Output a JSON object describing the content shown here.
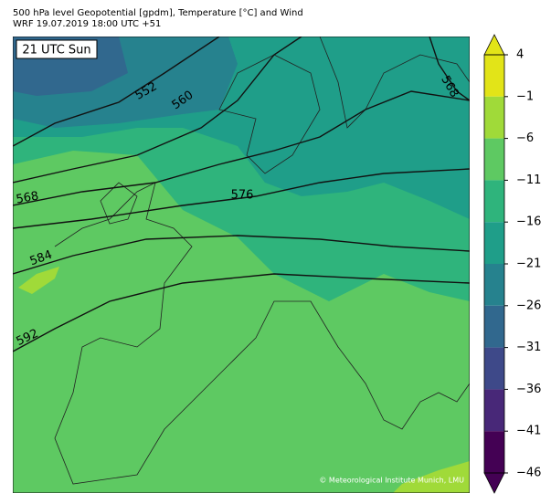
{
  "header": {
    "title": "500 hPa level Geopotential [gpdm], Temperature [°C] and Wind",
    "subtitle": "WRF 19.07.2019 18:00 UTC +51"
  },
  "map": {
    "time_label": "21 UTC Sun",
    "contour_labels": [
      552,
      560,
      568,
      576,
      584,
      592,
      568
    ],
    "copyright": "© Meteorological Institute Munich, LMU"
  },
  "colorbar": {
    "lim": [
      -46,
      4
    ],
    "ticks": [
      4,
      {
        "value": -1,
        "label": "−1"
      },
      {
        "value": -6,
        "label": "−6"
      },
      {
        "value": -11,
        "label": "−11"
      },
      {
        "value": -16,
        "label": "−16"
      },
      {
        "value": -21,
        "label": "−21"
      },
      {
        "value": -26,
        "label": "−26"
      },
      {
        "value": -31,
        "label": "−31"
      },
      {
        "value": -36,
        "label": "−36"
      },
      {
        "value": -41,
        "label": "−41"
      },
      {
        "value": -46,
        "label": "−46"
      }
    ],
    "colors": [
      "#e2e418",
      "#a0da39",
      "#5ec962",
      "#2fb47c",
      "#1f9e89",
      "#26828e",
      "#31688e",
      "#3e4989",
      "#482878",
      "#440154"
    ]
  }
}
